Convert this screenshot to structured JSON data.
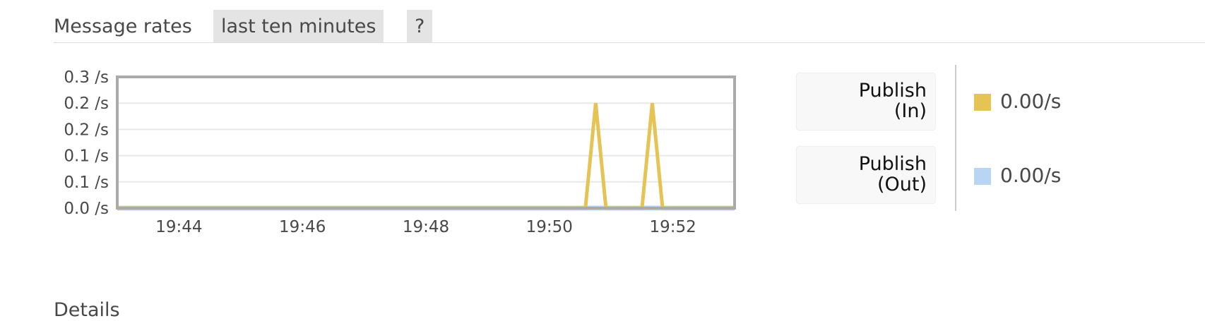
{
  "section": {
    "title": "Message rates",
    "period_label": "last ten minutes",
    "help_label": "?"
  },
  "legend": {
    "items": [
      {
        "label_line1": "Publish",
        "label_line2": "(In)",
        "rate": "0.00/s",
        "color": "#e5c355"
      },
      {
        "label_line1": "Publish",
        "label_line2": "(Out)",
        "rate": "0.00/s",
        "color": "#b8d6f4"
      }
    ]
  },
  "next_section": {
    "title": "Details"
  },
  "chart_data": {
    "type": "line",
    "x_unit": "time (HH:MM)",
    "x_range": [
      "19:43:00",
      "19:53:00"
    ],
    "x_tick_labels": [
      "19:44",
      "19:46",
      "19:48",
      "19:50",
      "19:52"
    ],
    "y_tick_labels": [
      "0.3 /s",
      "0.2 /s",
      "0.2 /s",
      "0.1 /s",
      "0.1 /s",
      "0.0 /s"
    ],
    "ylim": [
      0,
      0.25
    ],
    "grid": true,
    "series": [
      {
        "name": "Publish (In)",
        "color": "#e5c355",
        "points": [
          [
            "19:43:00",
            0
          ],
          [
            "19:50:35",
            0
          ],
          [
            "19:50:45",
            0.2
          ],
          [
            "19:50:55",
            0
          ],
          [
            "19:51:30",
            0
          ],
          [
            "19:51:40",
            0.2
          ],
          [
            "19:51:50",
            0
          ],
          [
            "19:53:00",
            0
          ]
        ]
      },
      {
        "name": "Publish (Out)",
        "color": "#b8d6f4",
        "points": [
          [
            "19:43:00",
            0
          ],
          [
            "19:53:00",
            0
          ]
        ]
      }
    ]
  }
}
